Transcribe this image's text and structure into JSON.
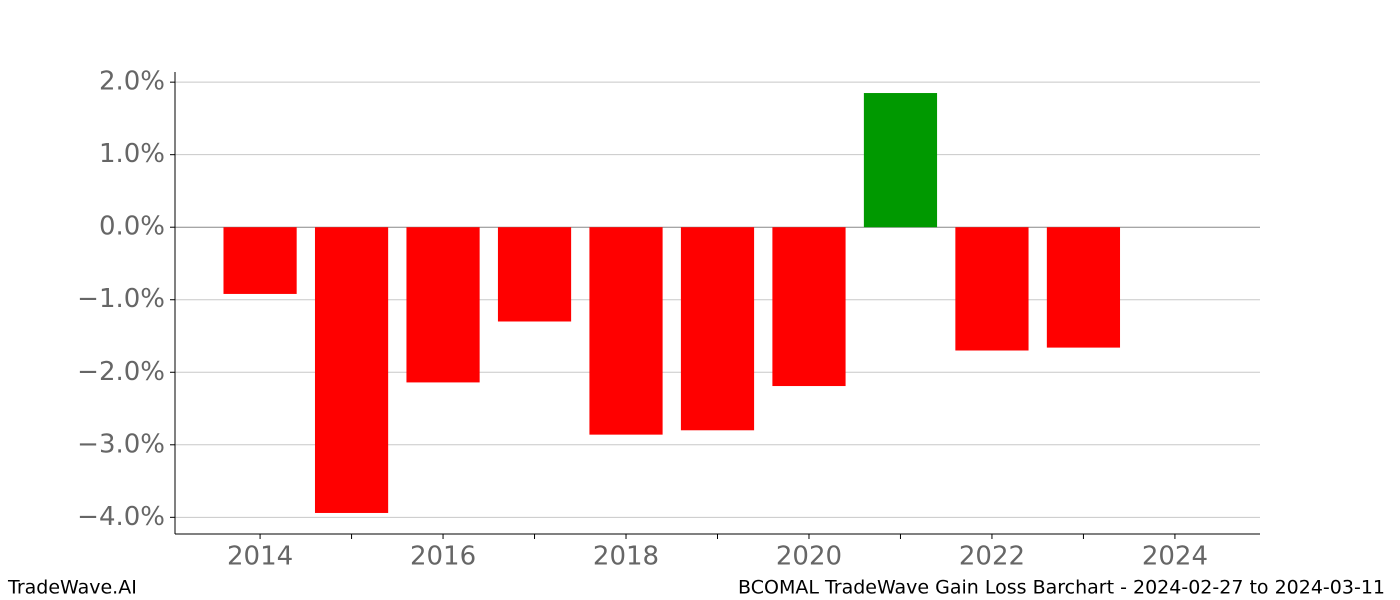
{
  "chart_data": {
    "type": "bar",
    "title": "BCOMAL TradeWave Gain Loss Barchart - 2024-02-27 to 2024-03-11",
    "watermark": "TradeWave.AI",
    "x": [
      2014,
      2015,
      2016,
      2017,
      2018,
      2019,
      2020,
      2021,
      2022,
      2023
    ],
    "values": [
      -0.92,
      -3.94,
      -2.14,
      -1.3,
      -2.86,
      -2.8,
      -2.19,
      1.85,
      -1.7,
      -1.66
    ],
    "positive_color": "#009900",
    "negative_color": "#ff0000",
    "xlim": [
      2013.07,
      2024.93
    ],
    "xticks": [
      2014,
      2016,
      2018,
      2020,
      2022,
      2024
    ],
    "xminorticks": [
      2015,
      2017,
      2019,
      2021,
      2023
    ],
    "ylim": [
      -4.23,
      2.14
    ],
    "yticks": [
      {
        "value": -4,
        "label": "−4.0%"
      },
      {
        "value": -3,
        "label": "−3.0%"
      },
      {
        "value": -2,
        "label": "−2.0%"
      },
      {
        "value": -1,
        "label": "−1.0%"
      },
      {
        "value": 0,
        "label": "0.0%"
      },
      {
        "value": 1,
        "label": "1.0%"
      },
      {
        "value": 2,
        "label": "2.0%"
      }
    ],
    "grid": true
  }
}
